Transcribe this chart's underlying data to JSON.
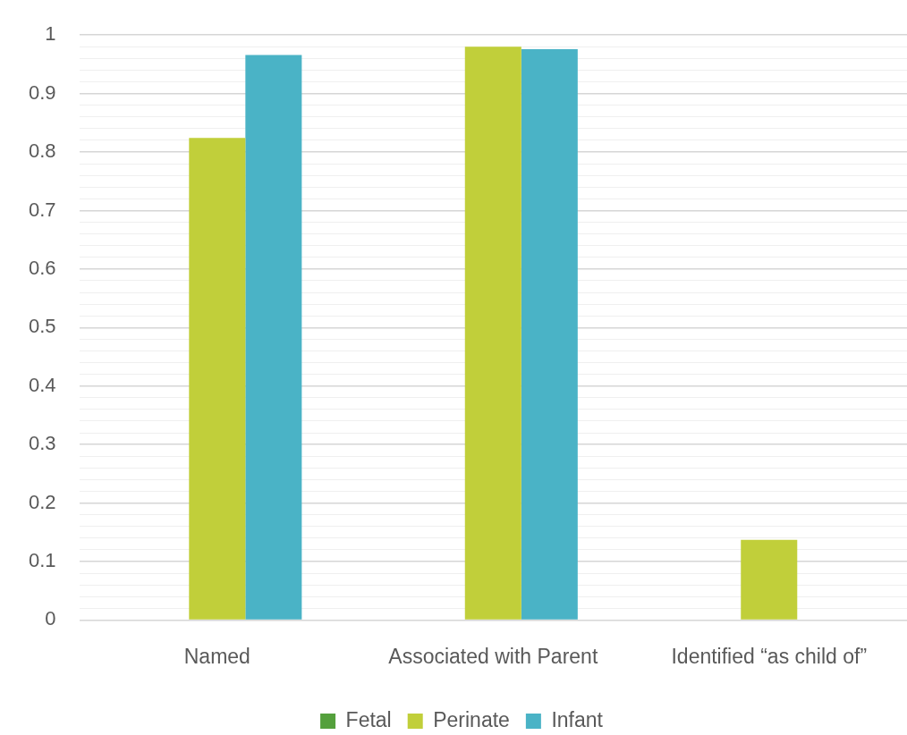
{
  "chart_data": {
    "type": "bar",
    "categories": [
      "Named",
      "Associated with Parent",
      "Identified “as child of”"
    ],
    "series": [
      {
        "name": "Fetal",
        "color": "#54a03c",
        "values": [
          0,
          0,
          0
        ]
      },
      {
        "name": "Perinate",
        "color": "#c1cf3a",
        "values": [
          0.824,
          0.98,
          0.137
        ]
      },
      {
        "name": "Infant",
        "color": "#4ab3c6",
        "values": [
          0.966,
          0.976,
          0
        ]
      }
    ],
    "ylim": [
      0,
      1
    ],
    "yticks": [
      0,
      {
        "value": 0.02,
        "label": null
      },
      {
        "value": 0.04,
        "label": null
      },
      {
        "value": 0.06,
        "label": null
      },
      {
        "value": 0.08,
        "label": null
      },
      0.1,
      {
        "value": 0.12,
        "label": null
      },
      {
        "value": 0.14,
        "label": null
      },
      {
        "value": 0.16,
        "label": null
      },
      {
        "value": 0.18,
        "label": null
      },
      0.2,
      {
        "value": 0.22,
        "label": null
      },
      {
        "value": 0.24,
        "label": null
      },
      {
        "value": 0.26,
        "label": null
      },
      {
        "value": 0.28,
        "label": null
      },
      0.3,
      {
        "value": 0.32,
        "label": null
      },
      {
        "value": 0.34,
        "label": null
      },
      {
        "value": 0.36,
        "label": null
      },
      {
        "value": 0.38,
        "label": null
      },
      0.4,
      {
        "value": 0.42,
        "label": null
      },
      {
        "value": 0.44,
        "label": null
      },
      {
        "value": 0.46,
        "label": null
      },
      {
        "value": 0.48,
        "label": null
      },
      0.5,
      {
        "value": 0.52,
        "label": null
      },
      {
        "value": 0.54,
        "label": null
      },
      {
        "value": 0.56,
        "label": null
      },
      {
        "value": 0.58,
        "label": null
      },
      0.6,
      {
        "value": 0.62,
        "label": null
      },
      {
        "value": 0.64,
        "label": null
      },
      {
        "value": 0.66,
        "label": null
      },
      {
        "value": 0.68,
        "label": null
      },
      0.7,
      {
        "value": 0.72,
        "label": null
      },
      {
        "value": 0.74,
        "label": null
      },
      {
        "value": 0.76,
        "label": null
      },
      {
        "value": 0.78,
        "label": null
      },
      0.8,
      {
        "value": 0.82,
        "label": null
      },
      {
        "value": 0.84,
        "label": null
      },
      {
        "value": 0.86,
        "label": null
      },
      {
        "value": 0.88,
        "label": null
      },
      0.9,
      {
        "value": 0.92,
        "label": null
      },
      {
        "value": 0.94,
        "label": null
      },
      {
        "value": 0.96,
        "label": null
      },
      {
        "value": 0.98,
        "label": null
      },
      1
    ],
    "grid": "y",
    "legend": "bottom"
  }
}
